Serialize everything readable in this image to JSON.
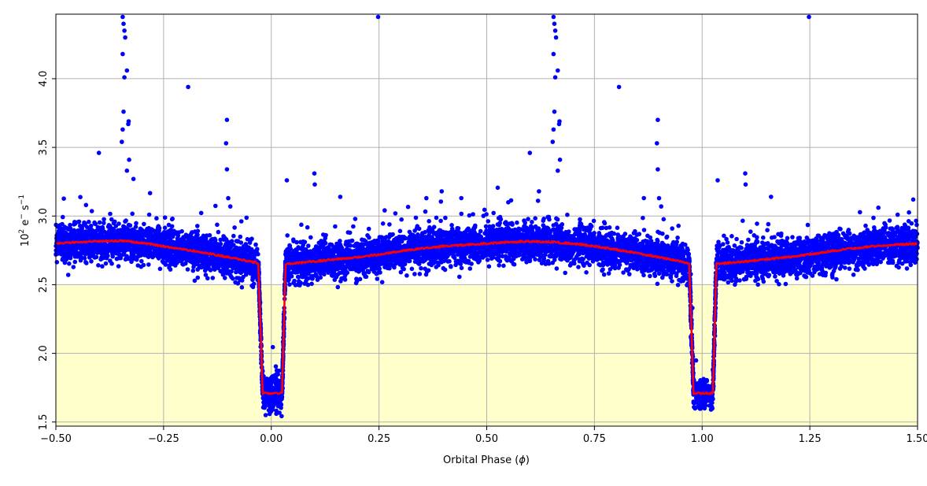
{
  "chart_data": {
    "type": "scatter",
    "title": "",
    "xlabel_main": "Orbital Phase (",
    "xlabel_symbol": "ϕ",
    "xlabel_close": ")",
    "ylabel_base": "10",
    "ylabel_exp": "2",
    "ylabel_unit": " e",
    "ylabel_minus": "−",
    "ylabel_s": "  s",
    "ylabel_exp2": "−1",
    "xlim": [
      -0.5,
      1.5
    ],
    "ylim": [
      1.47,
      4.47
    ],
    "grid": true,
    "x_ticks": [
      -0.5,
      -0.25,
      0.0,
      0.25,
      0.5,
      0.75,
      1.0,
      1.25,
      1.5
    ],
    "x_tick_labels": [
      "−0.50",
      "−0.25",
      "0.00",
      "0.25",
      "0.50",
      "0.75",
      "1.00",
      "1.25",
      "1.50"
    ],
    "y_ticks": [
      1.5,
      2.0,
      2.5,
      3.0,
      3.5,
      4.0
    ],
    "y_tick_labels": [
      "1.5",
      "2.0",
      "2.5",
      "3.0",
      "3.5",
      "4.0"
    ],
    "shaded_region": {
      "y_max": 2.5,
      "color": "#ffffcc"
    },
    "series_colors": {
      "observed": "#0000ff",
      "model": "#ff0000"
    },
    "eclipse": {
      "centers": [
        0.0,
        1.0
      ],
      "ingress_start_offset": -0.03,
      "flat_start_offset": -0.02,
      "flat_end_offset": 0.025,
      "egress_end_offset": 0.033,
      "depth_flux": 1.71,
      "pre_eclipse_flux": 2.655,
      "post_eclipse_flux": 2.65
    },
    "model_curve": {
      "x": [
        -0.5,
        -0.45,
        -0.4,
        -0.35,
        -0.3,
        -0.25,
        -0.2,
        -0.15,
        -0.1,
        -0.05,
        -0.03,
        -0.02,
        0.025,
        0.033,
        0.05,
        0.1,
        0.15,
        0.2,
        0.25,
        0.3,
        0.35,
        0.4,
        0.45,
        0.5,
        0.55,
        0.6,
        0.65,
        0.7,
        0.75,
        0.8,
        0.85,
        0.9,
        0.95,
        0.97,
        0.98,
        1.025,
        1.033,
        1.05,
        1.1,
        1.15,
        1.2,
        1.25,
        1.3,
        1.35,
        1.4,
        1.45,
        1.5
      ],
      "y": [
        2.8,
        2.81,
        2.815,
        2.82,
        2.805,
        2.78,
        2.755,
        2.73,
        2.7,
        2.67,
        2.655,
        1.71,
        1.71,
        2.65,
        2.655,
        2.67,
        2.685,
        2.7,
        2.72,
        2.745,
        2.765,
        2.78,
        2.79,
        2.8,
        2.81,
        2.815,
        2.81,
        2.8,
        2.78,
        2.755,
        2.73,
        2.7,
        2.67,
        2.655,
        1.71,
        1.71,
        2.65,
        2.655,
        2.67,
        2.685,
        2.7,
        2.72,
        2.745,
        2.765,
        2.78,
        2.79,
        2.8
      ]
    },
    "scatter_spread": 0.065,
    "outliers": [
      {
        "x": -0.345,
        "y": 4.45
      },
      {
        "x": -0.343,
        "y": 4.4
      },
      {
        "x": -0.341,
        "y": 4.35
      },
      {
        "x": -0.339,
        "y": 4.3
      },
      {
        "x": -0.345,
        "y": 4.18
      },
      {
        "x": -0.335,
        "y": 4.06
      },
      {
        "x": -0.341,
        "y": 4.01
      },
      {
        "x": -0.343,
        "y": 3.76
      },
      {
        "x": -0.331,
        "y": 3.69
      },
      {
        "x": -0.332,
        "y": 3.67
      },
      {
        "x": -0.345,
        "y": 3.63
      },
      {
        "x": -0.347,
        "y": 3.54
      },
      {
        "x": -0.33,
        "y": 3.41
      },
      {
        "x": -0.335,
        "y": 3.33
      },
      {
        "x": -0.32,
        "y": 3.27
      },
      {
        "x": -0.4,
        "y": 3.46
      },
      {
        "x": -0.193,
        "y": 3.94
      },
      {
        "x": -0.103,
        "y": 3.7
      },
      {
        "x": -0.105,
        "y": 3.53
      },
      {
        "x": -0.103,
        "y": 3.34
      },
      {
        "x": -0.1,
        "y": 3.13
      },
      {
        "x": -0.095,
        "y": 3.07
      },
      {
        "x": 0.248,
        "y": 4.45
      },
      {
        "x": 0.655,
        "y": 4.45
      },
      {
        "x": 0.657,
        "y": 4.4
      },
      {
        "x": 0.659,
        "y": 4.35
      },
      {
        "x": 0.661,
        "y": 4.3
      },
      {
        "x": 0.655,
        "y": 4.18
      },
      {
        "x": 0.665,
        "y": 4.06
      },
      {
        "x": 0.659,
        "y": 4.01
      },
      {
        "x": 0.657,
        "y": 3.76
      },
      {
        "x": 0.669,
        "y": 3.69
      },
      {
        "x": 0.668,
        "y": 3.67
      },
      {
        "x": 0.655,
        "y": 3.63
      },
      {
        "x": 0.653,
        "y": 3.54
      },
      {
        "x": 0.67,
        "y": 3.41
      },
      {
        "x": 0.665,
        "y": 3.33
      },
      {
        "x": 0.6,
        "y": 3.46
      },
      {
        "x": 0.807,
        "y": 3.94
      },
      {
        "x": 0.897,
        "y": 3.7
      },
      {
        "x": 0.895,
        "y": 3.53
      },
      {
        "x": 0.897,
        "y": 3.34
      },
      {
        "x": 0.9,
        "y": 3.13
      },
      {
        "x": 0.905,
        "y": 3.07
      },
      {
        "x": 1.248,
        "y": 4.45
      },
      {
        "x": 0.036,
        "y": 3.26
      },
      {
        "x": 0.1,
        "y": 3.31
      },
      {
        "x": 0.101,
        "y": 3.23
      },
      {
        "x": 1.036,
        "y": 3.26
      },
      {
        "x": 1.1,
        "y": 3.31
      },
      {
        "x": 1.101,
        "y": 3.23
      },
      {
        "x": 0.16,
        "y": 3.14
      },
      {
        "x": 1.16,
        "y": 3.14
      },
      {
        "x": 0.36,
        "y": 3.13
      },
      {
        "x": 1.49,
        "y": 3.12
      },
      {
        "x": -0.43,
        "y": 3.08
      },
      {
        "x": 0.55,
        "y": 3.1
      }
    ]
  }
}
